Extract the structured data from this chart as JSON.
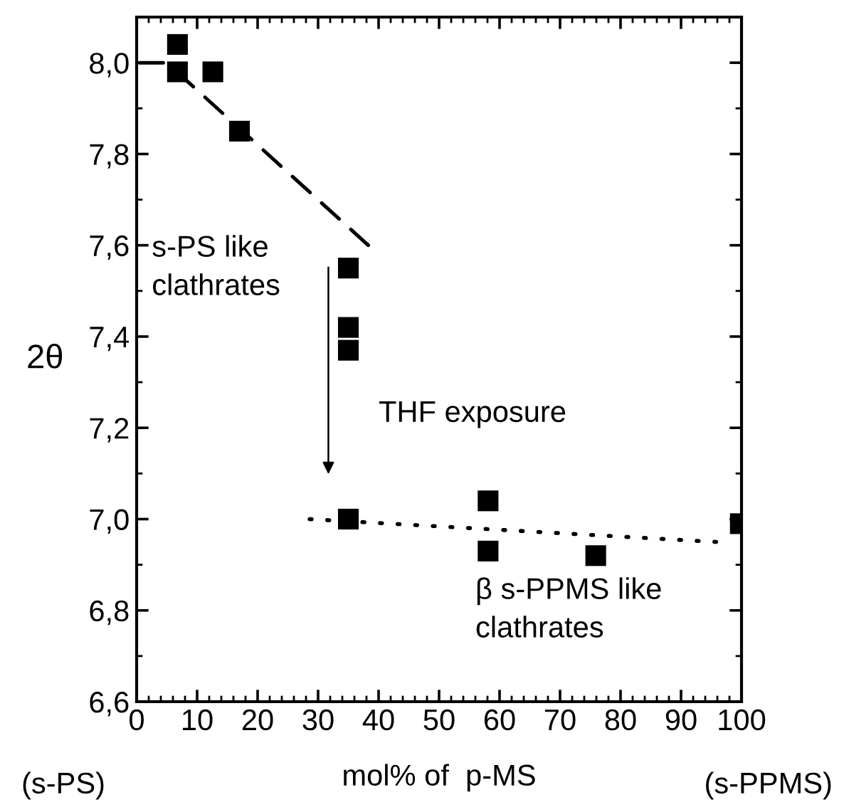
{
  "chart_data": {
    "type": "scatter",
    "xlabel": "mol% of  p-MS",
    "ylabel": "2θ",
    "series": [
      {
        "color": "#000000",
        "marker": "square",
        "x": [
          6.75,
          6.75,
          12.6,
          17.0,
          35.0,
          35.0,
          35.0,
          35.0,
          58.1,
          58.1,
          75.9,
          99.8
        ],
        "values": [
          8.04,
          7.98,
          7.98,
          7.85,
          7.55,
          7.42,
          7.37,
          7.0,
          7.04,
          6.93,
          6.92,
          6.99
        ]
      },
      {
        "type": "line",
        "color": "#000000",
        "marker": "none",
        "line_style": "dashed",
        "x": [
          0.5,
          5,
          38.3
        ],
        "values": [
          8.0,
          8.0,
          7.6
        ]
      },
      {
        "type": "line",
        "color": "#000000",
        "marker": "none",
        "line_style": "dotted",
        "x": [
          28.6,
          95.8
        ],
        "values": [
          7.0,
          6.95
        ]
      }
    ],
    "annotations": [
      "s-PS like\nclathrates",
      "THF exposure",
      "β s-PPMS like\nclathrates",
      "(s-PS)",
      "(s-PPMS)"
    ],
    "xlim": [
      0,
      100
    ],
    "ylim": [
      6.6,
      8.1
    ],
    "xticks": [
      0,
      10,
      20,
      30,
      40,
      50,
      60,
      70,
      80,
      90,
      100
    ],
    "yticks": [
      {
        "value": 6.6,
        "label": "6,6"
      },
      {
        "value": 6.8,
        "label": "6,8"
      },
      {
        "value": 7.0,
        "label": "7,0"
      },
      {
        "value": 7.2,
        "label": "7,2"
      },
      {
        "value": 7.4,
        "label": "7,4"
      },
      {
        "value": 7.6,
        "label": "7,6"
      },
      {
        "value": 7.8,
        "label": "7,8"
      },
      {
        "value": 8.0,
        "label": "8,0"
      }
    ],
    "grid": false,
    "legend": false
  }
}
